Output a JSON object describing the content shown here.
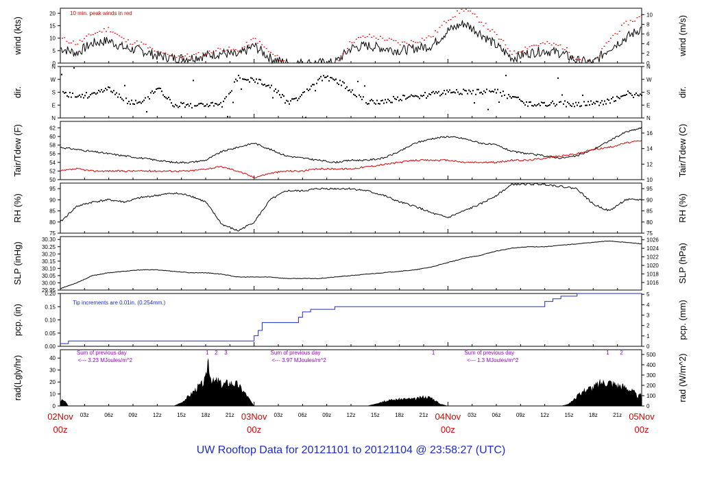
{
  "footer": {
    "title": "UW Rooftop Data for 20121101  to  20121104 @ 23:58:27  (UTC)"
  },
  "colors": {
    "trace": "#000000",
    "red": "#dd0000",
    "blue": "#1a2ad8",
    "purple": "#9900cc",
    "axis": "#000000"
  },
  "time_axis": {
    "hour_ticks": [
      "03z",
      "06z",
      "09z",
      "12z",
      "15z",
      "18z",
      "21z",
      "03z",
      "06z",
      "09z",
      "12z",
      "15z",
      "18z",
      "21z",
      "03z",
      "06z",
      "09z",
      "12z",
      "15z",
      "18z",
      "21z"
    ],
    "hour_tick_hours": [
      3,
      6,
      9,
      12,
      15,
      18,
      21,
      27,
      30,
      33,
      36,
      39,
      42,
      45,
      51,
      54,
      57,
      60,
      63,
      66,
      69
    ],
    "day_labels": [
      {
        "top": "02Nov",
        "bottom": "00z",
        "hour": 0
      },
      {
        "top": "03Nov",
        "bottom": "00z",
        "hour": 24
      },
      {
        "top": "04Nov",
        "bottom": "00z",
        "hour": 48
      },
      {
        "top": "05Nov",
        "bottom": "00z",
        "hour": 72
      }
    ]
  },
  "chart_data": [
    {
      "type": "line",
      "panel": "wind",
      "ylabel_left": "wind (kts)",
      "ylabel_right": "wind (m/s)",
      "left_ticks": [
        0,
        5,
        10,
        15,
        20
      ],
      "right_ticks": [
        0,
        2,
        4,
        6,
        8,
        10
      ],
      "ylim": [
        0,
        22
      ],
      "annotation": "10 min. peak winds in red",
      "x_hours": [
        0,
        2,
        4,
        6,
        8,
        10,
        12,
        14,
        16,
        18,
        20,
        22,
        24,
        26,
        28,
        30,
        32,
        34,
        36,
        38,
        40,
        42,
        44,
        46,
        48,
        50,
        52,
        54,
        56,
        58,
        60,
        62,
        64,
        66,
        68,
        70,
        72
      ],
      "series": [
        {
          "values": [
            6,
            4,
            8,
            9,
            6,
            5,
            3,
            2,
            2,
            3,
            4,
            3,
            7,
            2,
            0,
            0,
            0,
            0,
            6,
            7,
            6,
            5,
            6,
            7,
            13,
            16,
            12,
            7,
            2,
            4,
            5,
            4,
            1,
            0,
            6,
            10,
            14
          ]
        },
        {
          "values": [
            10,
            8,
            12,
            14,
            9,
            8,
            4,
            3,
            3,
            4,
            6,
            5,
            10,
            4,
            0,
            0,
            0,
            0,
            9,
            11,
            10,
            8,
            9,
            11,
            18,
            22,
            17,
            11,
            4,
            7,
            8,
            7,
            2,
            0,
            10,
            16,
            19
          ]
        }
      ]
    },
    {
      "type": "scatter",
      "panel": "dir",
      "ylabel_left": "dir.",
      "ylabel_right": "dir.",
      "tick_labels": [
        "N",
        "E",
        "S",
        "W",
        "N"
      ],
      "x_hours": [
        0,
        2,
        4,
        6,
        8,
        10,
        12,
        14,
        16,
        18,
        20,
        22,
        24,
        26,
        28,
        30,
        32,
        34,
        36,
        38,
        40,
        42,
        44,
        46,
        48,
        50,
        52,
        54,
        56,
        58,
        60,
        62,
        64,
        66,
        68,
        70,
        72
      ],
      "values_deg": [
        180,
        150,
        165,
        200,
        120,
        100,
        210,
        95,
        90,
        95,
        90,
        290,
        260,
        230,
        110,
        160,
        280,
        270,
        190,
        110,
        115,
        140,
        150,
        165,
        180,
        185,
        180,
        185,
        140,
        95,
        95,
        100,
        95,
        100,
        120,
        170,
        150
      ]
    },
    {
      "type": "line",
      "panel": "temperature",
      "ylabel_left": "Tair/Tdew (F)",
      "ylabel_right": "Tair/Tdew (C)",
      "left_ticks": [
        50,
        52,
        54,
        56,
        58,
        60,
        62
      ],
      "right_ticks": [
        10,
        12,
        14,
        16
      ],
      "ylim": [
        50,
        63.5
      ],
      "x_hours": [
        0,
        2,
        4,
        6,
        8,
        10,
        12,
        14,
        16,
        18,
        20,
        22,
        24,
        26,
        28,
        30,
        32,
        34,
        36,
        38,
        40,
        42,
        44,
        46,
        48,
        50,
        52,
        54,
        56,
        58,
        60,
        62,
        64,
        66,
        68,
        70,
        72
      ],
      "series": [
        {
          "name": "Tair",
          "values": [
            57.5,
            57,
            56.5,
            56,
            55.5,
            55,
            54.5,
            54,
            54,
            54.5,
            56.5,
            57.5,
            58.5,
            57,
            55.5,
            55,
            54.5,
            54,
            54.5,
            54.5,
            55,
            56.5,
            58.5,
            59.5,
            60,
            59.5,
            58.5,
            58,
            56.5,
            56,
            55.5,
            55,
            55.5,
            57,
            59,
            61,
            62
          ]
        },
        {
          "name": "Tdew",
          "values": [
            52,
            52.5,
            52,
            52,
            52,
            52,
            52,
            52,
            52,
            52.5,
            53,
            52,
            50.5,
            51.5,
            52,
            52,
            52.5,
            52.5,
            52.5,
            53,
            53.5,
            54,
            54.5,
            54.5,
            54.5,
            54,
            54,
            54,
            54.5,
            54.5,
            55,
            55.5,
            56,
            57,
            57.5,
            58.5,
            59
          ]
        }
      ]
    },
    {
      "type": "line",
      "panel": "rh",
      "ylabel_left": "RH (%)",
      "ylabel_right": "RH (%)",
      "ticks": [
        75,
        80,
        85,
        90,
        95
      ],
      "ylim": [
        75,
        97.5
      ],
      "x_hours": [
        0,
        2,
        4,
        6,
        8,
        10,
        12,
        14,
        16,
        18,
        20,
        22,
        24,
        26,
        28,
        30,
        32,
        34,
        36,
        38,
        40,
        42,
        44,
        46,
        48,
        50,
        52,
        54,
        56,
        58,
        60,
        62,
        64,
        66,
        68,
        70,
        72
      ],
      "values": [
        80,
        87,
        89,
        90,
        89,
        91,
        92,
        93,
        92,
        89,
        79,
        76,
        80,
        90,
        94,
        94,
        95,
        95,
        95,
        94,
        92,
        89,
        87,
        84,
        82,
        85,
        88,
        92,
        97,
        97,
        97,
        96,
        95,
        88,
        85,
        90,
        90
      ]
    },
    {
      "type": "line",
      "panel": "slp",
      "ylabel_left": "SLP (inHg)",
      "ylabel_right": "SLP (hPa)",
      "left_ticks": [
        29.95,
        30.0,
        30.05,
        30.1,
        30.15,
        30.2,
        30.25,
        30.3
      ],
      "right_ticks": [
        1016,
        1018,
        1020,
        1022,
        1024,
        1026
      ],
      "ylim": [
        29.95,
        30.32
      ],
      "x_hours": [
        0,
        2,
        4,
        6,
        8,
        10,
        12,
        14,
        16,
        18,
        20,
        22,
        24,
        26,
        28,
        30,
        32,
        34,
        36,
        38,
        40,
        42,
        44,
        46,
        48,
        50,
        52,
        54,
        56,
        58,
        60,
        62,
        64,
        66,
        68,
        70,
        72
      ],
      "values": [
        29.96,
        30.0,
        30.05,
        30.07,
        30.08,
        30.09,
        30.09,
        30.08,
        30.07,
        30.07,
        30.06,
        30.04,
        30.04,
        30.04,
        30.03,
        30.03,
        30.03,
        30.04,
        30.05,
        30.06,
        30.07,
        30.08,
        30.09,
        30.11,
        30.14,
        30.17,
        30.19,
        30.22,
        30.24,
        30.25,
        30.25,
        30.26,
        30.27,
        30.28,
        30.29,
        30.28,
        30.27
      ]
    },
    {
      "type": "line",
      "panel": "pcp",
      "ylabel_left": "pcp. (in)",
      "ylabel_right": "pcp. (mm)",
      "left_ticks": [
        "0.00",
        "0.05",
        "0.10",
        "0.15",
        "0.20"
      ],
      "right_ticks": [
        0,
        1,
        2,
        3,
        4,
        5
      ],
      "ylim": [
        0,
        0.2
      ],
      "annotation": "Tip increments are 0.01in. (0.254mm.)",
      "x_hours": [
        0,
        0.5,
        1,
        2,
        4,
        8,
        12,
        16,
        20,
        22,
        23.5,
        24,
        24.5,
        25,
        26,
        28,
        29.5,
        30,
        31,
        32,
        34,
        38,
        44,
        48,
        52,
        56,
        58,
        60,
        61,
        62,
        64,
        68,
        72
      ],
      "values": [
        0.01,
        0.01,
        0.02,
        0.02,
        0.02,
        0.02,
        0.02,
        0.02,
        0.02,
        0.02,
        0.02,
        0.04,
        0.06,
        0.09,
        0.09,
        0.09,
        0.11,
        0.13,
        0.14,
        0.14,
        0.15,
        0.15,
        0.15,
        0.15,
        0.15,
        0.15,
        0.15,
        0.17,
        0.18,
        0.19,
        0.2,
        0.2,
        0.2
      ]
    },
    {
      "type": "area",
      "panel": "rad",
      "ylabel_left": "rad(Lgly/hr)",
      "ylabel_right": "rad (W/m^2)",
      "left_ticks": [
        0,
        10,
        20,
        30,
        40
      ],
      "right_ticks": [
        0,
        100,
        200,
        300,
        400,
        500
      ],
      "ylim": [
        0,
        47
      ],
      "x_hours": [
        0,
        0.3,
        0.7,
        1,
        1.5,
        14,
        15,
        16,
        17,
        17.5,
        18,
        18.3,
        18.6,
        19,
        19.5,
        20,
        21,
        22,
        23,
        24,
        38,
        39,
        40,
        42,
        44,
        45,
        46,
        47,
        48,
        62,
        63,
        64,
        65,
        66,
        67,
        68,
        69,
        70,
        71,
        71.5,
        72
      ],
      "values": [
        3,
        6,
        3,
        0,
        0,
        0,
        3,
        9,
        16,
        18,
        22,
        42,
        25,
        20,
        22,
        18,
        20,
        18,
        10,
        0,
        0,
        2,
        4,
        6,
        6,
        8,
        7,
        2,
        0,
        0,
        2,
        8,
        14,
        16,
        20,
        20,
        18,
        16,
        12,
        8,
        10
      ],
      "day_notes": [
        {
          "text": "Sum of previous day",
          "value_text": "<--- 3.23 MJoules/m^2"
        },
        {
          "text": "Sum of previous day",
          "value_text": "<--- 3.97 MJoules/m^2"
        },
        {
          "text": "Sum of previous day",
          "value_text": "<--- 1.3 MJoules/m^2"
        }
      ],
      "peak_marks": [
        "1",
        "2",
        "3",
        "1",
        "1",
        "2"
      ]
    }
  ]
}
